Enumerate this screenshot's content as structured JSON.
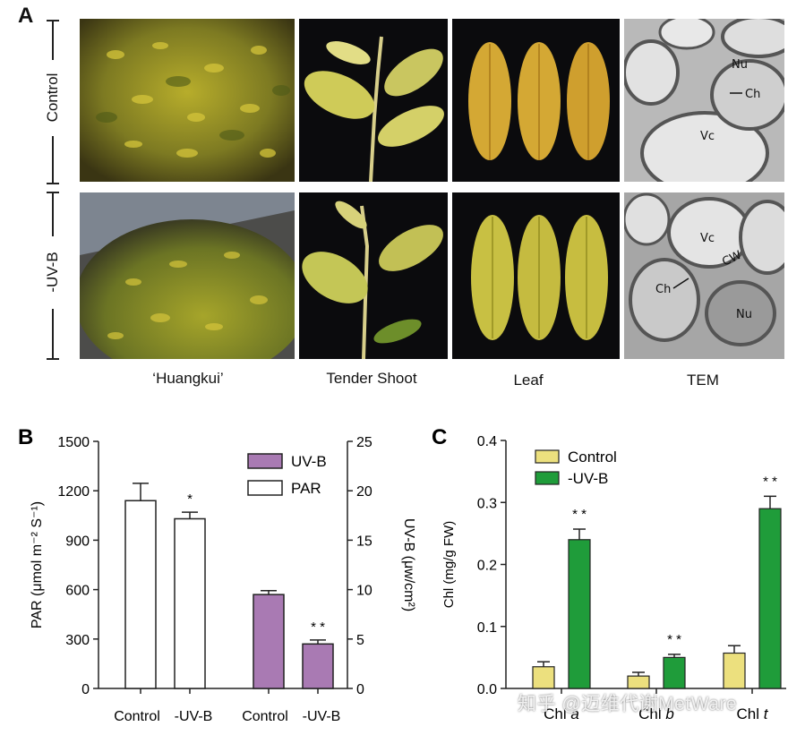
{
  "panel_a": {
    "letter": "A",
    "row_labels": [
      "Control",
      "-UV-B"
    ],
    "captions": [
      "‘Huangkui’",
      "Tender Shoot",
      "Leaf",
      "TEM"
    ],
    "tem_labels": {
      "control": [
        "Nu",
        "Ch",
        "Vc"
      ],
      "uvb": [
        "Vc",
        "CW",
        "Ch",
        "Nu"
      ]
    }
  },
  "watermark": "知乎 @迈维代谢MetWare",
  "chart_data": [
    {
      "panel": "B",
      "type": "bar",
      "categories": [
        "Control",
        "-UV-B",
        "Control",
        "-UV-B"
      ],
      "series": [
        {
          "name": "PAR",
          "axis": "left",
          "color": "#ffffff",
          "values": [
            1140,
            1030,
            null,
            null
          ],
          "errors": [
            105,
            40,
            null,
            null
          ],
          "sig": [
            "",
            "*",
            "",
            ""
          ]
        },
        {
          "name": "UV-B",
          "axis": "right",
          "color": "#a97ab3",
          "values": [
            null,
            null,
            9.5,
            4.5
          ],
          "errors": [
            null,
            null,
            0.4,
            0.4
          ],
          "sig": [
            "",
            "",
            "",
            "* *"
          ]
        }
      ],
      "ylabel": "PAR (μmol m⁻² S⁻¹)",
      "ylabel_right": "UV-B (μw/cm²)",
      "ylim": [
        0,
        1500
      ],
      "ylim_right": [
        0,
        25
      ],
      "yticks": [
        "0",
        "300",
        "600",
        "900",
        "1200",
        "1500"
      ],
      "yticks_right": [
        "0",
        "5",
        "10",
        "15",
        "20",
        "25"
      ],
      "legend": [
        "UV-B",
        "PAR"
      ],
      "legend_position": "top-right"
    },
    {
      "panel": "C",
      "type": "bar",
      "categories": [
        "Chl a",
        "Chl b",
        "Chl t"
      ],
      "category_main": [
        "Chl ",
        "Chl ",
        "Chl "
      ],
      "category_italic": [
        "a",
        "b",
        "t"
      ],
      "series": [
        {
          "name": "Control",
          "color": "#ece07e",
          "values": [
            0.035,
            0.02,
            0.057
          ],
          "errors": [
            0.008,
            0.006,
            0.012
          ]
        },
        {
          "name": "-UV-B",
          "color": "#1f9c3a",
          "values": [
            0.24,
            0.05,
            0.29
          ],
          "errors": [
            0.017,
            0.005,
            0.02
          ]
        }
      ],
      "sig": [
        "* *",
        "* *",
        "* *"
      ],
      "ylabel": "Chl (mg/g FW)",
      "ylim": [
        0,
        0.4
      ],
      "yticks": [
        "0.0",
        "0.1",
        "0.2",
        "0.3",
        "0.4"
      ],
      "legend_position": "top-left"
    }
  ]
}
